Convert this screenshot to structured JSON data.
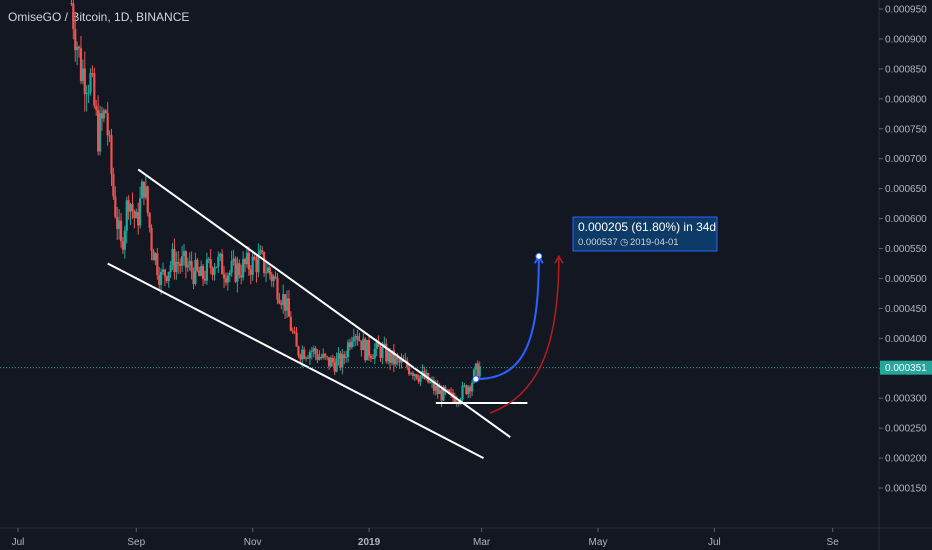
{
  "header": {
    "title": "OmiseGO / Bitcoin, 1D, BINANCE"
  },
  "colors": {
    "background": "#131722",
    "axis_text": "#b2b5be",
    "up_candle": "#26a69a",
    "down_candle": "#ef5350",
    "trendline": "#ffffff",
    "price_line": "#26a69a",
    "projection_blue": "#2962ff",
    "projection_red": "#b71c1c",
    "label_bg": "#0d3a66",
    "label_border": "#2962ff"
  },
  "chart_data": {
    "type": "candlestick",
    "title": "OmiseGO / Bitcoin, 1D, BINANCE",
    "xlabel": "",
    "ylabel": "",
    "x_ticks": [
      "Jul",
      "Sep",
      "Nov",
      "2019",
      "Mar",
      "May",
      "Jul",
      "Se"
    ],
    "y_ticks": [
      "0.000150",
      "0.000200",
      "0.000250",
      "0.000300",
      "0.000350",
      "0.000400",
      "0.000450",
      "0.000500",
      "0.000550",
      "0.000600",
      "0.000650",
      "0.000700",
      "0.000750",
      "0.000800",
      "0.000850",
      "0.000900",
      "0.000950"
    ],
    "ylim": [
      0.00012,
      0.00096
    ],
    "date_range": [
      "2018-07-01",
      "2019-09-30"
    ],
    "last_price_label": "0.000351",
    "last_price": 0.000351,
    "price_path": [
      [
        "2018-07-29",
        0.00096
      ],
      [
        "2018-08-03",
        0.00085
      ],
      [
        "2018-08-08",
        0.00083
      ],
      [
        "2018-08-12",
        0.00074
      ],
      [
        "2018-08-16",
        0.00078
      ],
      [
        "2018-08-20",
        0.00064
      ],
      [
        "2018-08-24",
        0.00055
      ],
      [
        "2018-08-28",
        0.00064
      ],
      [
        "2018-09-01",
        0.00059
      ],
      [
        "2018-09-05",
        0.00066
      ],
      [
        "2018-09-09",
        0.00056
      ],
      [
        "2018-09-14",
        0.0005
      ],
      [
        "2018-09-20",
        0.00053
      ],
      [
        "2018-09-28",
        0.00052
      ],
      [
        "2018-10-05",
        0.0005
      ],
      [
        "2018-10-12",
        0.00053
      ],
      [
        "2018-10-20",
        0.00051
      ],
      [
        "2018-10-28",
        0.00052
      ],
      [
        "2018-11-05",
        0.00053
      ],
      [
        "2018-11-12",
        0.0005
      ],
      [
        "2018-11-18",
        0.00046
      ],
      [
        "2018-11-24",
        0.00038
      ],
      [
        "2018-12-02",
        0.00038
      ],
      [
        "2018-12-10",
        0.00036
      ],
      [
        "2018-12-18",
        0.00036
      ],
      [
        "2018-12-24",
        0.00042
      ],
      [
        "2018-12-30",
        0.00038
      ],
      [
        "2019-01-07",
        0.00038
      ],
      [
        "2019-01-15",
        0.00036
      ],
      [
        "2019-01-23",
        0.00035
      ],
      [
        "2019-01-31",
        0.00033
      ],
      [
        "2019-02-06",
        0.00031
      ],
      [
        "2019-02-13",
        0.0003
      ],
      [
        "2019-02-19",
        0.00031
      ],
      [
        "2019-02-24",
        0.00033
      ],
      [
        "2019-02-27",
        0.00035
      ],
      [
        "2019-02-28",
        0.000351
      ]
    ],
    "trendlines": [
      {
        "name": "upper channel",
        "from": [
          "2018-09-02",
          0.000682
        ],
        "to": [
          "2019-03-16",
          0.000235
        ]
      },
      {
        "name": "lower channel",
        "from": [
          "2018-08-17",
          0.000525
        ],
        "to": [
          "2019-03-02",
          0.0002
        ]
      },
      {
        "name": "support",
        "from": [
          "2019-02-05",
          0.000292
        ],
        "to": [
          "2019-03-25",
          0.000292
        ]
      }
    ],
    "projection": {
      "label": "0.000205 (61.80%) in 34d",
      "target_price": "0.000537",
      "target_date": "2019-04-01",
      "from": [
        "2019-02-26",
        0.000332
      ],
      "to": [
        "2019-03-31",
        0.000537
      ]
    }
  }
}
